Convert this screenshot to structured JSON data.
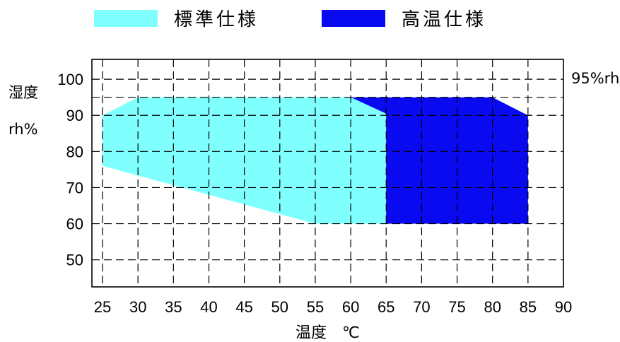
{
  "chart_data": {
    "type": "area",
    "title": "",
    "legend": {
      "placement": "top",
      "entries": [
        {
          "name": "標準仕様",
          "color": "#80FFFF"
        },
        {
          "name": "高温仕様",
          "color": "#0A0AF0"
        }
      ]
    },
    "xlabel": "温度　℃",
    "ylabel_line1": "湿度",
    "ylabel_line2": "rh%",
    "annotation": "95%rh",
    "xlim": [
      23.5,
      90
    ],
    "ylim": [
      42.5,
      105.5
    ],
    "x_ticks": [
      25,
      30,
      35,
      40,
      45,
      50,
      55,
      60,
      65,
      70,
      75,
      80,
      85,
      90
    ],
    "y_ticks": [
      50,
      60,
      70,
      80,
      90,
      100
    ],
    "grid": true,
    "series": [
      {
        "name": "高温仕様",
        "color": "#0A0AF0",
        "polygon": [
          [
            60,
            95
          ],
          [
            80,
            95
          ],
          [
            85,
            90
          ],
          [
            85,
            60
          ],
          [
            55,
            60
          ],
          [
            65,
            60
          ]
        ]
      },
      {
        "name": "標準仕様",
        "color": "#80FFFF",
        "polygon": [
          [
            25,
            90
          ],
          [
            30,
            95
          ],
          [
            60,
            95
          ],
          [
            65,
            90.5
          ],
          [
            65,
            60
          ],
          [
            55,
            60
          ],
          [
            25,
            76
          ]
        ]
      }
    ]
  }
}
